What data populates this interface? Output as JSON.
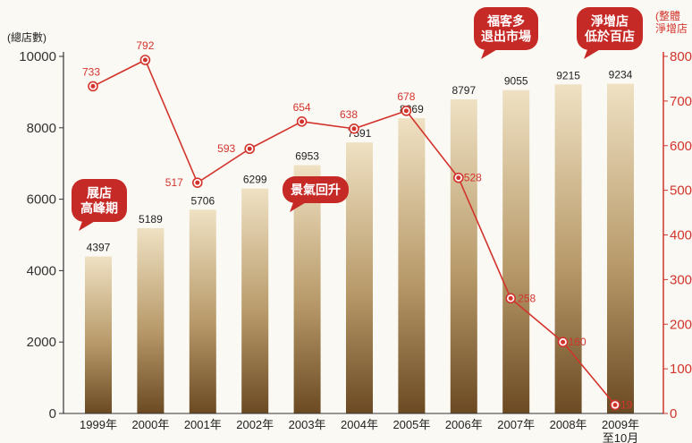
{
  "chart_data": {
    "type": "bar",
    "categories": [
      "1999年",
      "2000年",
      "2001年",
      "2002年",
      "2003年",
      "2004年",
      "2005年",
      "2006年",
      "2007年",
      "2008年",
      "2009年\n至10月"
    ],
    "series": [
      {
        "axis": "left",
        "type": "bar",
        "values": [
          4397,
          5189,
          5706,
          6299,
          6953,
          7591,
          8269,
          8797,
          9055,
          9215,
          9234
        ]
      },
      {
        "axis": "right",
        "type": "line",
        "values": [
          733,
          792,
          517,
          593,
          654,
          638,
          678,
          528,
          258,
          160,
          19
        ]
      }
    ],
    "y_left": {
      "label": "(總店數)",
      "ylim": [
        0,
        10000
      ],
      "ticks": [
        "0",
        "2000",
        "4000",
        "6000",
        "8000",
        "10000"
      ]
    },
    "y_right": {
      "label_lines": [
        "(整體",
        "淨增店"
      ],
      "ylim": [
        0,
        800
      ],
      "ticks": [
        "0",
        "100",
        "200",
        "300",
        "400",
        "500",
        "600",
        "700",
        "800"
      ]
    },
    "annotations": [
      {
        "lines": [
          "展店",
          "高峰期"
        ],
        "near": "1999年"
      },
      {
        "lines": [
          "景氣回升"
        ],
        "near": "2003年"
      },
      {
        "lines": [
          "福客多",
          "退出市場"
        ],
        "near": "2007年"
      },
      {
        "lines": [
          "淨增店",
          "低於百店"
        ],
        "near": "2009年"
      }
    ],
    "grid": false,
    "colors": {
      "bar_top": "#efe1c3",
      "bar_mid": "#b89a6a",
      "bar_bottom": "#6b4a23",
      "line": "#d2342c",
      "right_axis": "#d2342c",
      "bubble": "#c62a26"
    }
  }
}
